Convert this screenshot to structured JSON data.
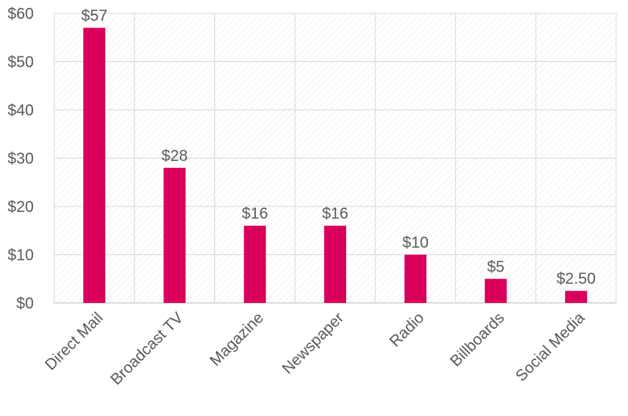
{
  "chart_data": {
    "type": "bar",
    "categories": [
      "Direct Mail",
      "Broadcast TV",
      "Magazine",
      "Newspaper",
      "Radio",
      "Billboards",
      "Social Media"
    ],
    "values": [
      57,
      28,
      16,
      16,
      10,
      5,
      2.5
    ],
    "data_labels": [
      "$57",
      "$28",
      "$16",
      "$16",
      "$10",
      "$5",
      "$2.50"
    ],
    "y_ticks": [
      0,
      10,
      20,
      30,
      40,
      50,
      60
    ],
    "y_tick_labels": [
      "$0",
      "$10",
      "$20",
      "$30",
      "$40",
      "$50",
      "$60"
    ],
    "ylim": [
      0,
      60
    ],
    "title": "",
    "xlabel": "",
    "ylabel": "",
    "grid": true,
    "legend": "none",
    "colors": {
      "bar": "#d9005b",
      "text": "#595959",
      "grid": "#d9d9d9",
      "hatch": "#e6e6e6"
    }
  }
}
